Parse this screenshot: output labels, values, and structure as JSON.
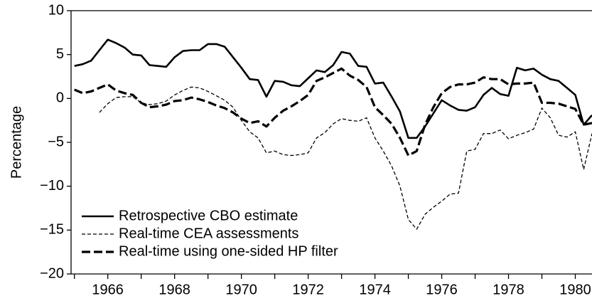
{
  "chart_data": {
    "type": "line",
    "y_label": "Percentage",
    "x": [
      1965.0,
      1965.25,
      1965.5,
      1965.75,
      1966.0,
      1966.25,
      1966.5,
      1966.75,
      1967.0,
      1967.25,
      1967.5,
      1967.75,
      1968.0,
      1968.25,
      1968.5,
      1968.75,
      1969.0,
      1969.25,
      1969.5,
      1969.75,
      1970.0,
      1970.25,
      1970.5,
      1970.75,
      1971.0,
      1971.25,
      1971.5,
      1971.75,
      1972.0,
      1972.25,
      1972.5,
      1972.75,
      1973.0,
      1973.25,
      1973.5,
      1973.75,
      1974.0,
      1974.25,
      1974.5,
      1974.75,
      1975.0,
      1975.25,
      1975.5,
      1975.75,
      1976.0,
      1976.25,
      1976.5,
      1976.75,
      1977.0,
      1977.25,
      1977.5,
      1977.75,
      1978.0,
      1978.25,
      1978.5,
      1978.75,
      1979.0,
      1979.25,
      1979.5,
      1979.75,
      1980.0,
      1980.25,
      1980.5
    ],
    "series": [
      {
        "name": "Retrospective CBO estimate",
        "color": "#000000",
        "line_style": "solid",
        "values": [
          3.7,
          3.9,
          4.3,
          5.5,
          6.7,
          6.3,
          5.8,
          5.0,
          4.9,
          3.8,
          3.7,
          3.6,
          4.7,
          5.4,
          5.5,
          5.5,
          6.2,
          6.2,
          5.9,
          4.7,
          3.5,
          2.2,
          2.1,
          0.2,
          2.0,
          1.9,
          1.5,
          1.4,
          2.3,
          3.2,
          3.0,
          3.8,
          5.3,
          5.1,
          3.7,
          3.6,
          1.7,
          1.8,
          0.2,
          -1.5,
          -4.5,
          -4.5,
          -3.2,
          -1.7,
          -0.2,
          -0.8,
          -1.3,
          -1.4,
          -1.0,
          0.4,
          1.2,
          0.5,
          0.3,
          3.5,
          3.2,
          3.4,
          2.7,
          2.2,
          2.0,
          1.2,
          0.4,
          -3.0,
          -1.9
        ]
      },
      {
        "name": "Real-time CEA assessments",
        "color": "#000000",
        "line_style": "thin-dashed",
        "values": [
          null,
          null,
          null,
          -1.6,
          -0.6,
          0.1,
          0.2,
          0.2,
          -0.5,
          -0.7,
          -0.6,
          -0.3,
          0.4,
          0.9,
          1.3,
          1.2,
          0.8,
          0.3,
          -0.2,
          -1.0,
          -2.5,
          -3.8,
          -4.5,
          -6.2,
          -6.0,
          -6.4,
          -6.5,
          -6.4,
          -6.2,
          -4.5,
          -3.9,
          -2.9,
          -2.3,
          -2.5,
          -2.6,
          -2.2,
          -4.5,
          -6.0,
          -7.7,
          -10.0,
          -13.8,
          -14.9,
          -13.2,
          -12.4,
          -11.7,
          -10.9,
          -10.8,
          -6.0,
          -5.8,
          -4.0,
          -4.0,
          -3.6,
          -4.6,
          -4.2,
          -3.9,
          -3.5,
          -1.1,
          -2.2,
          -4.2,
          -4.4,
          -3.8,
          -8.1,
          -4.0
        ]
      },
      {
        "name": "Real-time using one-sided HP filter",
        "color": "#000000",
        "line_style": "thick-dashed",
        "values": [
          1.0,
          0.6,
          0.8,
          1.2,
          1.6,
          0.9,
          0.6,
          0.4,
          -0.5,
          -1.0,
          -0.9,
          -0.7,
          -0.3,
          -0.2,
          0.1,
          -0.1,
          -0.4,
          -0.8,
          -1.1,
          -1.6,
          -2.3,
          -2.8,
          -2.6,
          -3.2,
          -2.2,
          -1.4,
          -0.9,
          -0.3,
          0.4,
          2.0,
          2.4,
          2.9,
          3.4,
          2.6,
          2.1,
          1.3,
          -1.0,
          -1.9,
          -2.9,
          -4.5,
          -6.5,
          -6.0,
          -3.0,
          -1.0,
          0.6,
          1.3,
          1.6,
          1.6,
          1.8,
          2.4,
          2.2,
          2.2,
          1.6,
          1.7,
          1.7,
          1.8,
          -0.5,
          -0.5,
          -0.6,
          -0.9,
          -1.2,
          -3.0,
          -2.8
        ]
      }
    ],
    "xlim": [
      1964.9,
      1980.5
    ],
    "xticks": [
      1966,
      1968,
      1970,
      1972,
      1974,
      1976,
      1978,
      1980
    ],
    "x_minor_ticks": [
      1965,
      1967,
      1969,
      1971,
      1973,
      1975,
      1977,
      1979
    ],
    "ylim": [
      -20,
      10
    ],
    "yticks": [
      {
        "value": -20,
        "label": "−20"
      },
      {
        "value": -15,
        "label": "−15"
      },
      {
        "value": -10,
        "label": "−10"
      },
      {
        "value": -5,
        "label": "−5"
      },
      0,
      5,
      10
    ],
    "legend": "lower-left",
    "grid": false
  }
}
